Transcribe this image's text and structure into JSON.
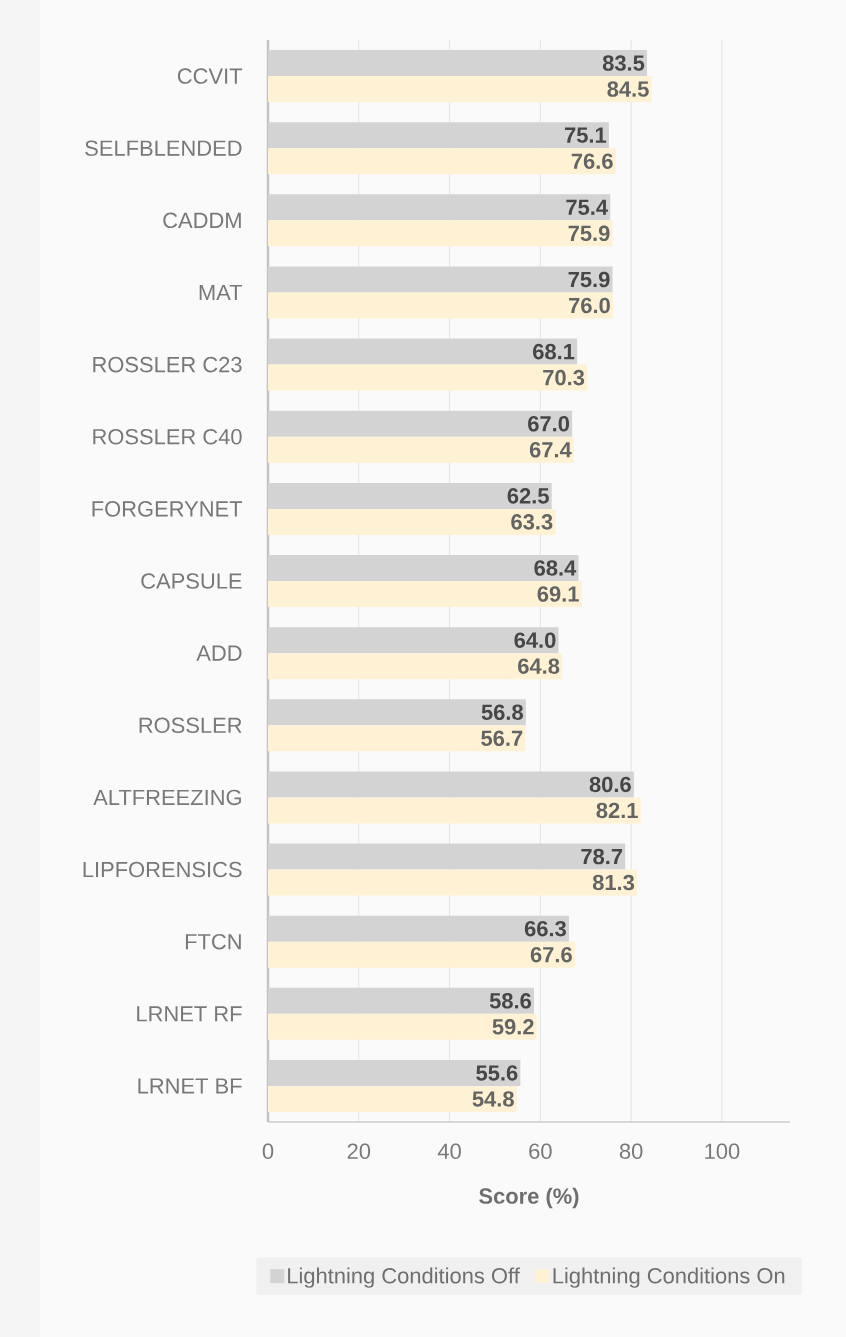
{
  "chart_data": {
    "type": "bar",
    "orientation": "horizontal",
    "xlabel": "Score (%)",
    "categories": [
      "CCVIT",
      "SELFBLENDED",
      "CADDM",
      "MAT",
      "ROSSLER C23",
      "ROSSLER C40",
      "FORGERYNET",
      "CAPSULE",
      "ADD",
      "ROSSLER",
      "ALTFREEZING",
      "LIPFORENSICS",
      "FTCN",
      "LRNET RF",
      "LRNET BF"
    ],
    "series": [
      {
        "name": "Lightning Conditions Off",
        "color": "#d3d3d3",
        "values": [
          83.5,
          75.1,
          75.4,
          75.9,
          68.1,
          67.0,
          62.5,
          68.4,
          64.0,
          56.8,
          80.6,
          78.7,
          66.3,
          58.6,
          55.6
        ],
        "value_labels": [
          "83.5",
          "75.1",
          "75.4",
          "75.9",
          "68.1",
          "67.0",
          "62.5",
          "68.4",
          "64.0",
          "56.8",
          "80.6",
          "78.7",
          "66.3",
          "58.6",
          "55.6"
        ]
      },
      {
        "name": "Lightning Conditions On",
        "color": "#fff2d4",
        "values": [
          84.5,
          76.6,
          75.9,
          76.0,
          70.3,
          67.4,
          63.3,
          69.1,
          64.8,
          56.7,
          82.1,
          81.3,
          67.6,
          59.2,
          54.8
        ],
        "value_labels": [
          "84.5",
          "76.6",
          "75.9",
          "76.0",
          "70.3",
          "67.4",
          "63.3",
          "69.1",
          "64.8",
          "56.7",
          "82.1",
          "81.3",
          "67.6",
          "59.2",
          "54.8"
        ]
      }
    ],
    "xlim": [
      0,
      115
    ],
    "xticks": [
      0,
      20,
      40,
      60,
      80,
      100
    ],
    "grid": "x",
    "legend": "bottom"
  }
}
